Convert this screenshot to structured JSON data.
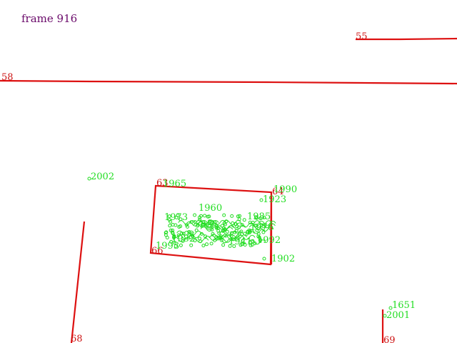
{
  "frame": {
    "label": "frame 916"
  },
  "segments": [
    {
      "id": "55",
      "label": "55"
    },
    {
      "id": "58",
      "label": "58"
    },
    {
      "id": "63",
      "label": "63"
    },
    {
      "id": "64",
      "label": "64"
    },
    {
      "id": "66",
      "label": "66"
    },
    {
      "id": "68",
      "label": "68"
    },
    {
      "id": "69",
      "label": "69"
    }
  ],
  "points": [
    {
      "label": "2002"
    },
    {
      "label": "1965"
    },
    {
      "label": "1990"
    },
    {
      "label": "1923"
    },
    {
      "label": "1960"
    },
    {
      "label": "1973"
    },
    {
      "label": "1985"
    },
    {
      "label": "1976"
    },
    {
      "label": "1982"
    },
    {
      "label": "1941"
    },
    {
      "label": "1992"
    },
    {
      "label": "1902"
    },
    {
      "label": "1993"
    },
    {
      "label": "1651"
    },
    {
      "label": "2001"
    }
  ],
  "colors": {
    "segment": "#dd1111",
    "point": "#22dd22",
    "frame": "#6a0a6a"
  }
}
